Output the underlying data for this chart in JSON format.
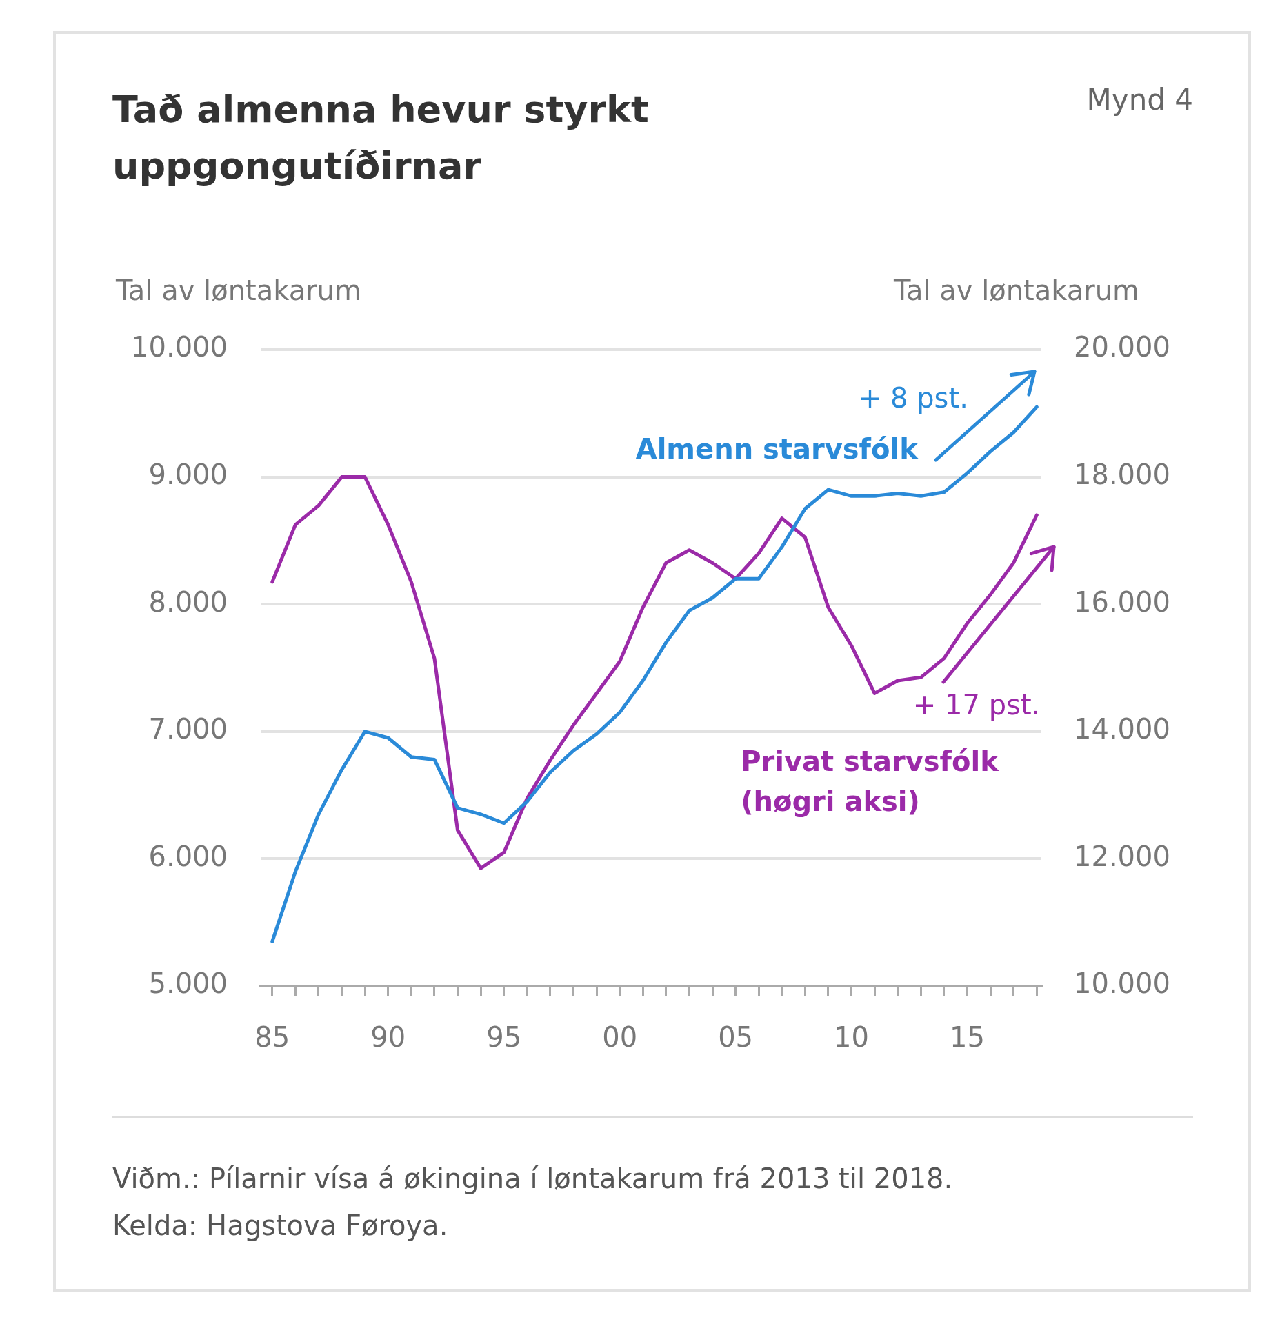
{
  "chart_data": {
    "type": "line",
    "title": "Tað almenna hevur styrkt uppgongutíðirnar",
    "ylabel": "Tal av løntakarum",
    "y2label": "Tal av løntakarum",
    "x": [
      1985,
      1986,
      1987,
      1988,
      1989,
      1990,
      1991,
      1992,
      1993,
      1994,
      1995,
      1996,
      1997,
      1998,
      1999,
      2000,
      2001,
      2002,
      2003,
      2004,
      2005,
      2006,
      2007,
      2008,
      2009,
      2010,
      2011,
      2012,
      2013,
      2014,
      2015,
      2016,
      2017,
      2018
    ],
    "series": [
      {
        "name": "Almenn starvsfólk",
        "color": "#2a8ad8",
        "values": [
          5350,
          5900,
          6350,
          6700,
          7000,
          6950,
          6800,
          6780,
          6400,
          6350,
          6280,
          6450,
          6680,
          6850,
          6980,
          7150,
          7400,
          7700,
          7950,
          8050,
          8200,
          8200,
          8450,
          8750,
          8900,
          8850,
          8850,
          8870,
          8850,
          8880,
          9030,
          9200,
          9350,
          9550
        ]
      },
      {
        "name": "Privat starvsfólk (høgri aksi)",
        "color": "#9b2aa8",
        "axis": "y2",
        "values": [
          16350,
          17250,
          17550,
          18000,
          18000,
          17250,
          16350,
          15150,
          12450,
          11850,
          12100,
          12950,
          13550,
          14100,
          14600,
          15100,
          15950,
          16650,
          16850,
          16650,
          16400,
          16800,
          17350,
          17050,
          15950,
          15350,
          14600,
          14800,
          14850,
          15150,
          15700,
          16150,
          16650,
          17400
        ]
      }
    ],
    "xlim": [
      1984.5,
      2018.2
    ],
    "xticks": [
      {
        "value": 1985,
        "label": "85"
      },
      {
        "value": 1986,
        "label": null
      },
      {
        "value": 1987,
        "label": null
      },
      {
        "value": 1988,
        "label": null
      },
      {
        "value": 1989,
        "label": null
      },
      {
        "value": 1990,
        "label": "90"
      },
      {
        "value": 1991,
        "label": null
      },
      {
        "value": 1992,
        "label": null
      },
      {
        "value": 1993,
        "label": null
      },
      {
        "value": 1994,
        "label": null
      },
      {
        "value": 1995,
        "label": "95"
      },
      {
        "value": 1996,
        "label": null
      },
      {
        "value": 1997,
        "label": null
      },
      {
        "value": 1998,
        "label": null
      },
      {
        "value": 1999,
        "label": null
      },
      {
        "value": 2000,
        "label": "00"
      },
      {
        "value": 2001,
        "label": null
      },
      {
        "value": 2002,
        "label": null
      },
      {
        "value": 2003,
        "label": null
      },
      {
        "value": 2004,
        "label": null
      },
      {
        "value": 2005,
        "label": "05"
      },
      {
        "value": 2006,
        "label": null
      },
      {
        "value": 2007,
        "label": null
      },
      {
        "value": 2008,
        "label": null
      },
      {
        "value": 2009,
        "label": null
      },
      {
        "value": 2010,
        "label": "10"
      },
      {
        "value": 2011,
        "label": null
      },
      {
        "value": 2012,
        "label": null
      },
      {
        "value": 2013,
        "label": null
      },
      {
        "value": 2014,
        "label": null
      },
      {
        "value": 2015,
        "label": "15"
      },
      {
        "value": 2016,
        "label": null
      },
      {
        "value": 2017,
        "label": null
      },
      {
        "value": 2018,
        "label": null
      }
    ],
    "ylim": [
      5000,
      10000
    ],
    "yticks": [
      {
        "value": 5000,
        "label": "5.000"
      },
      {
        "value": 6000,
        "label": "6.000"
      },
      {
        "value": 7000,
        "label": "7.000"
      },
      {
        "value": 8000,
        "label": "8.000"
      },
      {
        "value": 9000,
        "label": "9.000"
      },
      {
        "value": 10000,
        "label": "10.000"
      }
    ],
    "y2lim": [
      10000,
      20000
    ],
    "y2ticks": [
      {
        "value": 10000,
        "label": "10.000"
      },
      {
        "value": 12000,
        "label": "12.000"
      },
      {
        "value": 14000,
        "label": "14.000"
      },
      {
        "value": 16000,
        "label": "16.000"
      },
      {
        "value": 18000,
        "label": "18.000"
      },
      {
        "value": 20000,
        "label": "20.000"
      }
    ],
    "grid": "y",
    "legend": false,
    "marker": "none",
    "line_style": "solid",
    "annotations": [
      "Mynd 4",
      "+ 8 pst.",
      "+ 17 pst.",
      "Viðm.:  Pílarnir vísa á økingina í løntakarum frá 2013 til 2018.",
      "Kelda:  Hagstova Føroya."
    ]
  }
}
